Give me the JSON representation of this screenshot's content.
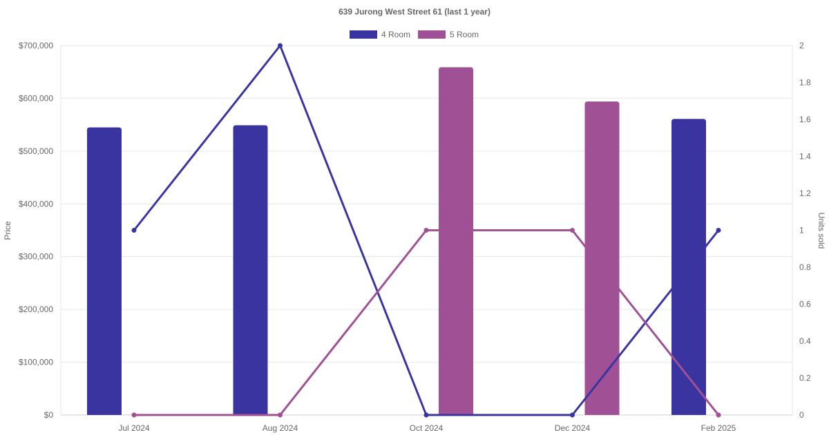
{
  "chart_data": {
    "type": "bar",
    "title": "639 Jurong West Street 61 (last 1 year)",
    "categories": [
      "Jul 2024",
      "Aug 2024",
      "Oct 2024",
      "Dec 2024",
      "Feb 2025"
    ],
    "y_left": {
      "label": "Price",
      "ylim": [
        0,
        700000
      ],
      "ticks": [
        "$0",
        "$100,000",
        "$200,000",
        "$300,000",
        "$400,000",
        "$500,000",
        "$600,000",
        "$700,000"
      ]
    },
    "y_right": {
      "label": "Units sold",
      "ylim": [
        0,
        2
      ],
      "ticks": [
        "0",
        "0.2",
        "0.4",
        "0.6",
        "0.8",
        "1",
        "1.2",
        "1.4",
        "1.6",
        "1.8",
        "2"
      ]
    },
    "legend": {
      "position": "top",
      "entries": [
        "4 Room",
        "5 Room"
      ]
    },
    "grid": true,
    "series": [
      {
        "name": "4 Room",
        "kind": "bar",
        "axis": "left",
        "color": "#3a34a0",
        "values": [
          545000,
          549000,
          null,
          null,
          561000
        ]
      },
      {
        "name": "5 Room",
        "kind": "bar",
        "axis": "left",
        "color": "#a05094",
        "values": [
          null,
          null,
          659000,
          594000,
          null
        ]
      },
      {
        "name": "4 Room",
        "kind": "line",
        "axis": "right",
        "color": "#3a34a0",
        "values": [
          1,
          2,
          0,
          0,
          1
        ]
      },
      {
        "name": "5 Room",
        "kind": "line",
        "axis": "right",
        "color": "#a05094",
        "values": [
          0,
          0,
          1,
          1,
          0
        ]
      }
    ]
  }
}
